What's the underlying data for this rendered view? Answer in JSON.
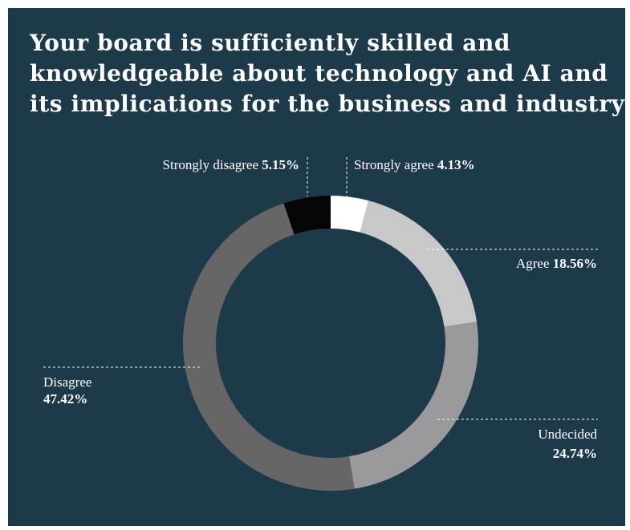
{
  "title_lines": [
    "Your board is sufficiently skilled and",
    "knowledgeable about technology and AI and",
    "its implications for the business and industry"
  ],
  "colors": {
    "background": "#1d3a4b",
    "strongly_agree": "#ffffff",
    "agree": "#c8c8c8",
    "undecided": "#9a9a9c",
    "disagree": "#666666",
    "strongly_disagree": "#050505"
  },
  "chart_data": {
    "type": "pie",
    "variant": "donut",
    "title": "Your board is sufficiently skilled and knowledgeable about technology and AI and its implications for the business and industry",
    "categories": [
      "Strongly agree",
      "Agree",
      "Undecided",
      "Disagree",
      "Strongly disagree"
    ],
    "values": [
      4.13,
      18.56,
      24.74,
      47.42,
      5.15
    ],
    "labels": [
      "4.13%",
      "18.56%",
      "24.74%",
      "47.42%",
      "5.15%"
    ],
    "unit": "%",
    "start": "12 o'clock, clockwise"
  }
}
